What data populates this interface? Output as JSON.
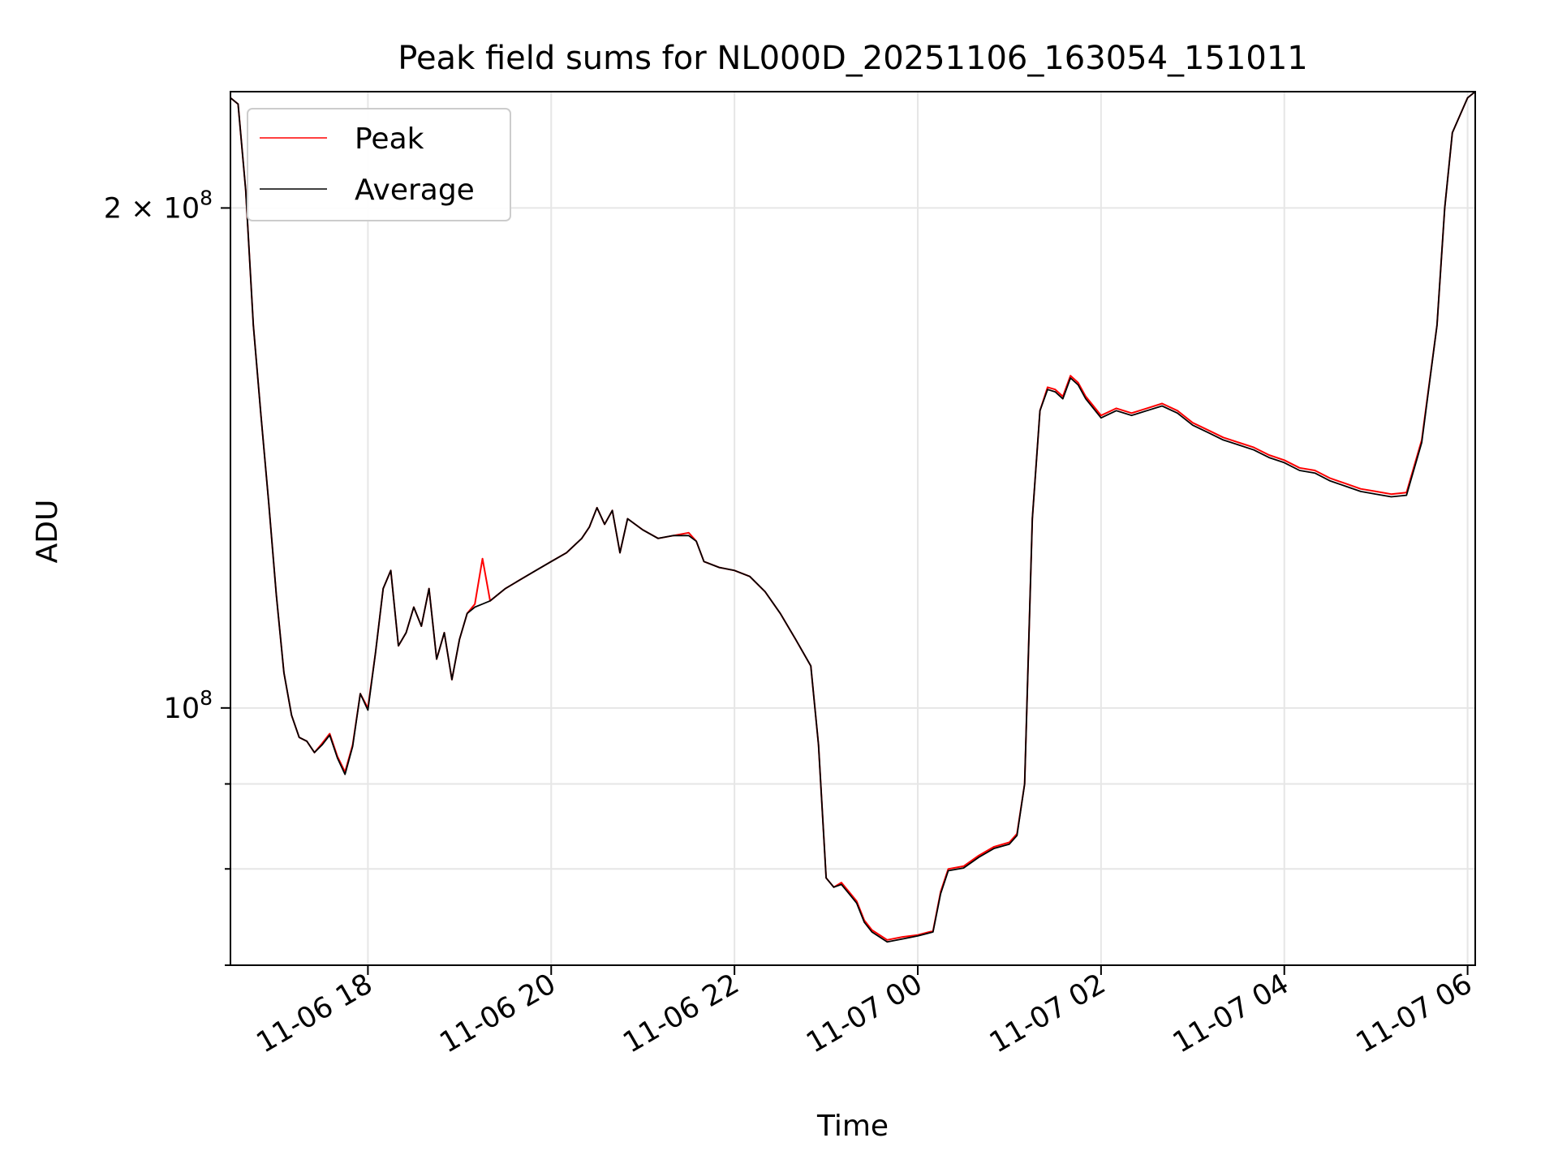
{
  "chart_data": {
    "type": "line",
    "title": "Peak field sums for NL000D_20251106_163054_151011",
    "xlabel": "Time",
    "ylabel": "ADU",
    "yscale": "log",
    "grid": true,
    "legend_position": "top-left",
    "x_ticks": [
      "2025-11-06 18:00",
      "2025-11-06 20:00",
      "2025-11-06 22:00",
      "2025-11-07 00:00",
      "2025-11-07 02:00",
      "2025-11-07 04:00",
      "2025-11-07 06:00"
    ],
    "x_tick_labels": [
      "11-06 18",
      "11-06 20",
      "11-06 22",
      "11-07 00",
      "11-07 02",
      "11-07 04",
      "11-07 06"
    ],
    "y_ticks": [
      100000000,
      200000000
    ],
    "y_tick_labels": [
      {
        "base": "10",
        "exp": "8"
      },
      {
        "base": "2 × 10",
        "exp": "8"
      }
    ],
    "y_minor_ticks": [
      60000000,
      70000000,
      80000000,
      90000000,
      300000000
    ],
    "xlim": [
      "2025-11-06 16:30",
      "2025-11-07 06:05"
    ],
    "ylim": [
      70000000,
      235000000
    ],
    "series": [
      {
        "name": "Peak",
        "color": "#ff0000",
        "points": [
          [
            "2025-11-06 16:30",
            233000000
          ],
          [
            "2025-11-06 16:35",
            231000000
          ],
          [
            "2025-11-06 16:40",
            205000000
          ],
          [
            "2025-11-06 16:45",
            170000000
          ],
          [
            "2025-11-06 16:50",
            150000000
          ],
          [
            "2025-11-06 16:55",
            133000000
          ],
          [
            "2025-11-06 17:00",
            117000000
          ],
          [
            "2025-11-06 17:05",
            105000000
          ],
          [
            "2025-11-06 17:10",
            99000000
          ],
          [
            "2025-11-06 17:15",
            96000000
          ],
          [
            "2025-11-06 17:20",
            95500000
          ],
          [
            "2025-11-06 17:25",
            94000000
          ],
          [
            "2025-11-06 17:30",
            95200000
          ],
          [
            "2025-11-06 17:35",
            96500000
          ],
          [
            "2025-11-06 17:40",
            93500000
          ],
          [
            "2025-11-06 17:45",
            91500000
          ],
          [
            "2025-11-06 17:50",
            95000000
          ],
          [
            "2025-11-06 17:55",
            102000000
          ],
          [
            "2025-11-06 18:00",
            100000000
          ],
          [
            "2025-11-06 18:05",
            108000000
          ],
          [
            "2025-11-06 18:10",
            118000000
          ],
          [
            "2025-11-06 18:15",
            121000000
          ],
          [
            "2025-11-06 18:20",
            109000000
          ],
          [
            "2025-11-06 18:25",
            111000000
          ],
          [
            "2025-11-06 18:30",
            115000000
          ],
          [
            "2025-11-06 18:35",
            112000000
          ],
          [
            "2025-11-06 18:40",
            118000000
          ],
          [
            "2025-11-06 18:45",
            107000000
          ],
          [
            "2025-11-06 18:50",
            111000000
          ],
          [
            "2025-11-06 18:55",
            104000000
          ],
          [
            "2025-11-06 19:00",
            110000000
          ],
          [
            "2025-11-06 19:05",
            114000000
          ],
          [
            "2025-11-06 19:10",
            115500000
          ],
          [
            "2025-11-06 19:15",
            123000000
          ],
          [
            "2025-11-06 19:20",
            116000000
          ],
          [
            "2025-11-06 19:25",
            117000000
          ],
          [
            "2025-11-06 19:30",
            118000000
          ],
          [
            "2025-11-06 19:40",
            119500000
          ],
          [
            "2025-11-06 19:50",
            121000000
          ],
          [
            "2025-11-06 20:00",
            122500000
          ],
          [
            "2025-11-06 20:10",
            124000000
          ],
          [
            "2025-11-06 20:20",
            126500000
          ],
          [
            "2025-11-06 20:25",
            128500000
          ],
          [
            "2025-11-06 20:30",
            132000000
          ],
          [
            "2025-11-06 20:35",
            129000000
          ],
          [
            "2025-11-06 20:40",
            131500000
          ],
          [
            "2025-11-06 20:45",
            124000000
          ],
          [
            "2025-11-06 20:50",
            130000000
          ],
          [
            "2025-11-06 21:00",
            128000000
          ],
          [
            "2025-11-06 21:10",
            126500000
          ],
          [
            "2025-11-06 21:20",
            127000000
          ],
          [
            "2025-11-06 21:30",
            127500000
          ],
          [
            "2025-11-06 21:35",
            126000000
          ],
          [
            "2025-11-06 21:40",
            122500000
          ],
          [
            "2025-11-06 21:50",
            121500000
          ],
          [
            "2025-11-06 22:00",
            121000000
          ],
          [
            "2025-11-06 22:10",
            120000000
          ],
          [
            "2025-11-06 22:20",
            117500000
          ],
          [
            "2025-11-06 22:30",
            114000000
          ],
          [
            "2025-11-06 22:40",
            110000000
          ],
          [
            "2025-11-06 22:50",
            106000000
          ],
          [
            "2025-11-06 22:55",
            95000000
          ],
          [
            "2025-11-06 23:00",
            79000000
          ],
          [
            "2025-11-06 23:05",
            78000000
          ],
          [
            "2025-11-06 23:10",
            78500000
          ],
          [
            "2025-11-06 23:15",
            77500000
          ],
          [
            "2025-11-06 23:20",
            76500000
          ],
          [
            "2025-11-06 23:25",
            74500000
          ],
          [
            "2025-11-06 23:30",
            73500000
          ],
          [
            "2025-11-06 23:40",
            72500000
          ],
          [
            "2025-11-06 23:50",
            72800000
          ],
          [
            "2025-11-07 00:00",
            73000000
          ],
          [
            "2025-11-07 00:10",
            73400000
          ],
          [
            "2025-11-07 00:15",
            77500000
          ],
          [
            "2025-11-07 00:20",
            80000000
          ],
          [
            "2025-11-07 00:30",
            80300000
          ],
          [
            "2025-11-07 00:40",
            81500000
          ],
          [
            "2025-11-07 00:50",
            82500000
          ],
          [
            "2025-11-07 01:00",
            83000000
          ],
          [
            "2025-11-07 01:05",
            84000000
          ],
          [
            "2025-11-07 01:10",
            90000000
          ],
          [
            "2025-11-07 01:15",
            130000000
          ],
          [
            "2025-11-07 01:20",
            151000000
          ],
          [
            "2025-11-07 01:25",
            156000000
          ],
          [
            "2025-11-07 01:30",
            155500000
          ],
          [
            "2025-11-07 01:35",
            154000000
          ],
          [
            "2025-11-07 01:40",
            158500000
          ],
          [
            "2025-11-07 01:45",
            157000000
          ],
          [
            "2025-11-07 01:50",
            154000000
          ],
          [
            "2025-11-07 02:00",
            150000000
          ],
          [
            "2025-11-07 02:10",
            151500000
          ],
          [
            "2025-11-07 02:20",
            150500000
          ],
          [
            "2025-11-07 02:30",
            151500000
          ],
          [
            "2025-11-07 02:40",
            152500000
          ],
          [
            "2025-11-07 02:50",
            151000000
          ],
          [
            "2025-11-07 03:00",
            148500000
          ],
          [
            "2025-11-07 03:10",
            147000000
          ],
          [
            "2025-11-07 03:20",
            145500000
          ],
          [
            "2025-11-07 03:30",
            144500000
          ],
          [
            "2025-11-07 03:40",
            143500000
          ],
          [
            "2025-11-07 03:50",
            142000000
          ],
          [
            "2025-11-07 04:00",
            141000000
          ],
          [
            "2025-11-07 04:10",
            139500000
          ],
          [
            "2025-11-07 04:20",
            139000000
          ],
          [
            "2025-11-07 04:30",
            137500000
          ],
          [
            "2025-11-07 04:40",
            136500000
          ],
          [
            "2025-11-07 04:50",
            135500000
          ],
          [
            "2025-11-07 05:00",
            135000000
          ],
          [
            "2025-11-07 05:10",
            134500000
          ],
          [
            "2025-11-07 05:20",
            134800000
          ],
          [
            "2025-11-07 05:30",
            145000000
          ],
          [
            "2025-11-07 05:40",
            170000000
          ],
          [
            "2025-11-07 05:45",
            200000000
          ],
          [
            "2025-11-07 05:50",
            222000000
          ],
          [
            "2025-11-07 06:00",
            233000000
          ],
          [
            "2025-11-07 06:05",
            235000000
          ]
        ]
      },
      {
        "name": "Average",
        "color": "#000000",
        "points": [
          [
            "2025-11-06 16:30",
            233000000
          ],
          [
            "2025-11-06 16:35",
            231000000
          ],
          [
            "2025-11-06 16:40",
            205000000
          ],
          [
            "2025-11-06 16:45",
            170000000
          ],
          [
            "2025-11-06 16:50",
            150000000
          ],
          [
            "2025-11-06 16:55",
            133000000
          ],
          [
            "2025-11-06 17:00",
            117000000
          ],
          [
            "2025-11-06 17:05",
            105000000
          ],
          [
            "2025-11-06 17:10",
            99000000
          ],
          [
            "2025-11-06 17:15",
            96000000
          ],
          [
            "2025-11-06 17:20",
            95500000
          ],
          [
            "2025-11-06 17:25",
            94000000
          ],
          [
            "2025-11-06 17:30",
            95000000
          ],
          [
            "2025-11-06 17:35",
            96300000
          ],
          [
            "2025-11-06 17:40",
            93300000
          ],
          [
            "2025-11-06 17:45",
            91200000
          ],
          [
            "2025-11-06 17:50",
            94800000
          ],
          [
            "2025-11-06 17:55",
            102000000
          ],
          [
            "2025-11-06 18:00",
            99700000
          ],
          [
            "2025-11-06 18:05",
            108000000
          ],
          [
            "2025-11-06 18:10",
            118000000
          ],
          [
            "2025-11-06 18:15",
            121000000
          ],
          [
            "2025-11-06 18:20",
            109000000
          ],
          [
            "2025-11-06 18:25",
            111000000
          ],
          [
            "2025-11-06 18:30",
            115000000
          ],
          [
            "2025-11-06 18:35",
            112000000
          ],
          [
            "2025-11-06 18:40",
            118000000
          ],
          [
            "2025-11-06 18:45",
            107000000
          ],
          [
            "2025-11-06 18:50",
            111000000
          ],
          [
            "2025-11-06 18:55",
            104000000
          ],
          [
            "2025-11-06 19:00",
            110000000
          ],
          [
            "2025-11-06 19:05",
            114000000
          ],
          [
            "2025-11-06 19:10",
            115000000
          ],
          [
            "2025-11-06 19:15",
            115500000
          ],
          [
            "2025-11-06 19:20",
            116000000
          ],
          [
            "2025-11-06 19:25",
            117000000
          ],
          [
            "2025-11-06 19:30",
            118000000
          ],
          [
            "2025-11-06 19:40",
            119500000
          ],
          [
            "2025-11-06 19:50",
            121000000
          ],
          [
            "2025-11-06 20:00",
            122500000
          ],
          [
            "2025-11-06 20:10",
            124000000
          ],
          [
            "2025-11-06 20:20",
            126500000
          ],
          [
            "2025-11-06 20:25",
            128500000
          ],
          [
            "2025-11-06 20:30",
            132000000
          ],
          [
            "2025-11-06 20:35",
            129000000
          ],
          [
            "2025-11-06 20:40",
            131500000
          ],
          [
            "2025-11-06 20:45",
            124000000
          ],
          [
            "2025-11-06 20:50",
            130000000
          ],
          [
            "2025-11-06 21:00",
            128000000
          ],
          [
            "2025-11-06 21:10",
            126500000
          ],
          [
            "2025-11-06 21:20",
            127000000
          ],
          [
            "2025-11-06 21:30",
            127000000
          ],
          [
            "2025-11-06 21:35",
            126000000
          ],
          [
            "2025-11-06 21:40",
            122500000
          ],
          [
            "2025-11-06 21:50",
            121500000
          ],
          [
            "2025-11-06 22:00",
            121000000
          ],
          [
            "2025-11-06 22:10",
            120000000
          ],
          [
            "2025-11-06 22:20",
            117500000
          ],
          [
            "2025-11-06 22:30",
            114000000
          ],
          [
            "2025-11-06 22:40",
            110000000
          ],
          [
            "2025-11-06 22:50",
            106000000
          ],
          [
            "2025-11-06 22:55",
            95000000
          ],
          [
            "2025-11-06 23:00",
            79000000
          ],
          [
            "2025-11-06 23:05",
            78000000
          ],
          [
            "2025-11-06 23:10",
            78300000
          ],
          [
            "2025-11-06 23:15",
            77300000
          ],
          [
            "2025-11-06 23:20",
            76300000
          ],
          [
            "2025-11-06 23:25",
            74300000
          ],
          [
            "2025-11-06 23:30",
            73300000
          ],
          [
            "2025-11-06 23:40",
            72300000
          ],
          [
            "2025-11-06 23:50",
            72600000
          ],
          [
            "2025-11-07 00:00",
            72900000
          ],
          [
            "2025-11-07 00:10",
            73300000
          ],
          [
            "2025-11-07 00:15",
            77300000
          ],
          [
            "2025-11-07 00:20",
            79800000
          ],
          [
            "2025-11-07 00:30",
            80100000
          ],
          [
            "2025-11-07 00:40",
            81300000
          ],
          [
            "2025-11-07 00:50",
            82300000
          ],
          [
            "2025-11-07 01:00",
            82800000
          ],
          [
            "2025-11-07 01:05",
            83800000
          ],
          [
            "2025-11-07 01:10",
            90000000
          ],
          [
            "2025-11-07 01:15",
            130000000
          ],
          [
            "2025-11-07 01:20",
            151000000
          ],
          [
            "2025-11-07 01:25",
            155500000
          ],
          [
            "2025-11-07 01:30",
            155000000
          ],
          [
            "2025-11-07 01:35",
            153500000
          ],
          [
            "2025-11-07 01:40",
            158000000
          ],
          [
            "2025-11-07 01:45",
            156500000
          ],
          [
            "2025-11-07 01:50",
            153500000
          ],
          [
            "2025-11-07 02:00",
            149500000
          ],
          [
            "2025-11-07 02:10",
            151000000
          ],
          [
            "2025-11-07 02:20",
            150000000
          ],
          [
            "2025-11-07 02:30",
            151000000
          ],
          [
            "2025-11-07 02:40",
            152000000
          ],
          [
            "2025-11-07 02:50",
            150500000
          ],
          [
            "2025-11-07 03:00",
            148000000
          ],
          [
            "2025-11-07 03:10",
            146500000
          ],
          [
            "2025-11-07 03:20",
            145000000
          ],
          [
            "2025-11-07 03:30",
            144000000
          ],
          [
            "2025-11-07 03:40",
            143000000
          ],
          [
            "2025-11-07 03:50",
            141500000
          ],
          [
            "2025-11-07 04:00",
            140500000
          ],
          [
            "2025-11-07 04:10",
            139000000
          ],
          [
            "2025-11-07 04:20",
            138500000
          ],
          [
            "2025-11-07 04:30",
            137000000
          ],
          [
            "2025-11-07 04:40",
            136000000
          ],
          [
            "2025-11-07 04:50",
            135000000
          ],
          [
            "2025-11-07 05:00",
            134500000
          ],
          [
            "2025-11-07 05:10",
            134000000
          ],
          [
            "2025-11-07 05:20",
            134300000
          ],
          [
            "2025-11-07 05:30",
            144500000
          ],
          [
            "2025-11-07 05:40",
            170000000
          ],
          [
            "2025-11-07 05:45",
            200000000
          ],
          [
            "2025-11-07 05:50",
            222000000
          ],
          [
            "2025-11-07 06:00",
            233000000
          ],
          [
            "2025-11-07 06:05",
            235000000
          ]
        ]
      }
    ]
  }
}
